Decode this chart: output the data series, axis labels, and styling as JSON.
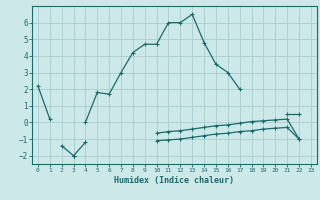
{
  "xlabel": "Humidex (Indice chaleur)",
  "x": [
    0,
    1,
    2,
    3,
    4,
    5,
    6,
    7,
    8,
    9,
    10,
    11,
    12,
    13,
    14,
    15,
    16,
    17,
    18,
    19,
    20,
    21,
    22,
    23
  ],
  "line1_y": [
    2.2,
    0.2,
    null,
    null,
    0.0,
    1.8,
    1.7,
    3.0,
    4.2,
    4.7,
    4.7,
    6.0,
    6.0,
    6.5,
    4.8,
    3.5,
    3.0,
    2.0,
    null,
    null,
    null,
    0.5,
    0.5,
    null
  ],
  "line2_y": [
    null,
    null,
    -1.4,
    -2.0,
    -1.2,
    null,
    null,
    null,
    null,
    null,
    null,
    null,
    null,
    null,
    null,
    null,
    null,
    null,
    null,
    null,
    null,
    null,
    null,
    null
  ],
  "line3_y": [
    null,
    null,
    null,
    -2.0,
    null,
    null,
    null,
    null,
    null,
    null,
    -0.65,
    -0.55,
    -0.5,
    -0.4,
    -0.3,
    -0.2,
    -0.15,
    -0.05,
    0.05,
    0.1,
    0.15,
    0.2,
    -1.0,
    null
  ],
  "line4_y": [
    null,
    null,
    null,
    -2.0,
    null,
    null,
    null,
    null,
    null,
    null,
    -1.1,
    -1.05,
    -1.0,
    -0.9,
    -0.8,
    -0.7,
    -0.65,
    -0.55,
    -0.5,
    -0.4,
    -0.35,
    -0.3,
    -1.0,
    null
  ],
  "bg_color": "#cce8e8",
  "line_color": "#1a6b6b",
  "grid_color": "#aacccc",
  "ylim": [
    -2.5,
    7.0
  ],
  "xlim": [
    -0.5,
    23.5
  ],
  "yticks": [
    -2,
    -1,
    0,
    1,
    2,
    3,
    4,
    5,
    6
  ],
  "xticks": [
    0,
    1,
    2,
    3,
    4,
    5,
    6,
    7,
    8,
    9,
    10,
    11,
    12,
    13,
    14,
    15,
    16,
    17,
    18,
    19,
    20,
    21,
    22,
    23
  ],
  "marker": "+",
  "marker_size": 3.5,
  "linewidth": 0.9
}
